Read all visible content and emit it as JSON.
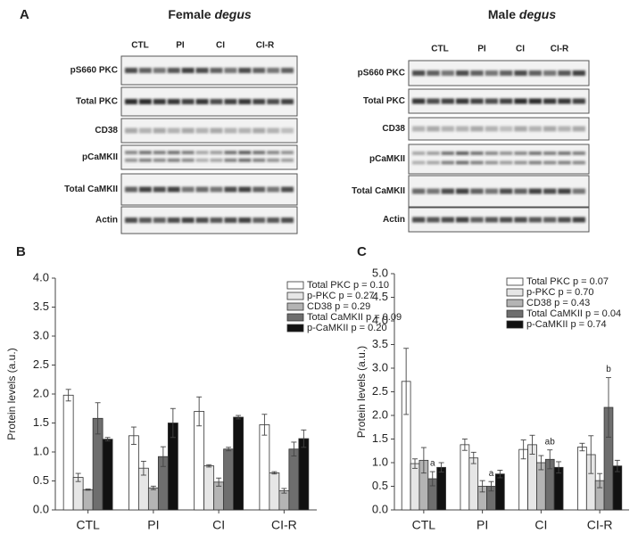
{
  "blots": {
    "panel": "A",
    "gels": [
      {
        "title": "Female",
        "title_italic": "degus",
        "groups": [
          "CTL",
          "PI",
          "CI",
          "CI-R"
        ],
        "rows": [
          "pS660 PKC",
          "Total PKC",
          "CD38",
          "pCaMKII",
          "Total CaMKII",
          "Actin"
        ]
      },
      {
        "title": "Male",
        "title_italic": "degus",
        "groups": [
          "CTL",
          "PI",
          "CI",
          "CI-R"
        ],
        "rows": [
          "pS660 PKC",
          "Total PKC",
          "CD38",
          "pCaMKII",
          "Total CaMKII",
          "Actin"
        ]
      }
    ]
  },
  "chart_data": [
    {
      "type": "bar",
      "panel": "B",
      "y_label": "Protein levels (a.u.)",
      "categories": [
        "CTL",
        "PI",
        "CI",
        "CI-R"
      ],
      "ylim": [
        0,
        4
      ],
      "yticks": [
        {
          "value": 0,
          "label": "0.0"
        },
        0.5,
        {
          "value": 1,
          "label": "1.0"
        },
        1.5,
        {
          "value": 2,
          "label": "2.0"
        },
        2.5,
        {
          "value": 3,
          "label": "3.0"
        },
        3.5,
        {
          "value": 4,
          "label": "4.0"
        }
      ],
      "legend": "upper right",
      "series": [
        {
          "name": "Total PKC p = 0.10",
          "color": "#ffffff",
          "values": [
            1.98,
            1.28,
            1.7,
            1.47
          ],
          "errors": [
            0.1,
            0.15,
            0.25,
            0.18
          ]
        },
        {
          "name": "p-PKC p = 0.27",
          "color": "#e6e6e6",
          "values": [
            0.56,
            0.72,
            0.76,
            0.64
          ],
          "errors": [
            0.07,
            0.12,
            0.02,
            0.02
          ]
        },
        {
          "name": "CD38 p = 0.29",
          "color": "#b4b4b4",
          "values": [
            0.35,
            0.38,
            0.48,
            0.33
          ],
          "errors": [
            0.01,
            0.03,
            0.07,
            0.04
          ]
        },
        {
          "name": "Total CaMKII p = 0.09",
          "color": "#6e6e6e",
          "values": [
            1.58,
            0.92,
            1.05,
            1.05
          ],
          "errors": [
            0.27,
            0.17,
            0.03,
            0.12
          ]
        },
        {
          "name": "p-CaMKII p = 0.20",
          "color": "#111111",
          "values": [
            1.22,
            1.5,
            1.6,
            1.23
          ],
          "errors": [
            0.03,
            0.25,
            0.03,
            0.15
          ]
        }
      ]
    },
    {
      "type": "bar",
      "panel": "C",
      "y_label": "Protein levels (a.u.)",
      "categories": [
        "CTL",
        "PI",
        "CI",
        "CI-R"
      ],
      "ylim": [
        0,
        5
      ],
      "yticks": [
        {
          "value": 0,
          "label": "0.0"
        },
        0.5,
        {
          "value": 1,
          "label": "1.0"
        },
        1.5,
        {
          "value": 2,
          "label": "2.0"
        },
        2.5,
        {
          "value": 3,
          "label": "3.0"
        },
        3.5,
        {
          "value": 4,
          "label": "4.0"
        },
        4.5,
        {
          "value": 5,
          "label": "5.0"
        }
      ],
      "legend": "upper right",
      "series": [
        {
          "name": "Total PKC p = 0.07",
          "color": "#ffffff",
          "values": [
            2.72,
            1.38,
            1.28,
            1.33
          ],
          "errors": [
            0.7,
            0.12,
            0.2,
            0.08
          ]
        },
        {
          "name": "p-PKC p = 0.70",
          "color": "#e6e6e6",
          "values": [
            0.98,
            1.1,
            1.38,
            1.17
          ],
          "errors": [
            0.1,
            0.12,
            0.2,
            0.4
          ]
        },
        {
          "name": "CD38 p = 0.43",
          "color": "#b4b4b4",
          "values": [
            1.05,
            0.5,
            1.0,
            0.62
          ],
          "errors": [
            0.27,
            0.12,
            0.15,
            0.15
          ]
        },
        {
          "name": "Total CaMKII p = 0.04",
          "color": "#6e6e6e",
          "values": [
            0.66,
            0.5,
            1.07,
            2.17
          ],
          "errors": [
            0.15,
            0.1,
            0.2,
            0.63
          ],
          "annotations": [
            "a",
            "a",
            "ab",
            "b"
          ]
        },
        {
          "name": "p-CaMKII p = 0.74",
          "color": "#111111",
          "values": [
            0.9,
            0.76,
            0.9,
            0.93
          ],
          "errors": [
            0.1,
            0.08,
            0.12,
            0.12
          ]
        }
      ]
    }
  ]
}
